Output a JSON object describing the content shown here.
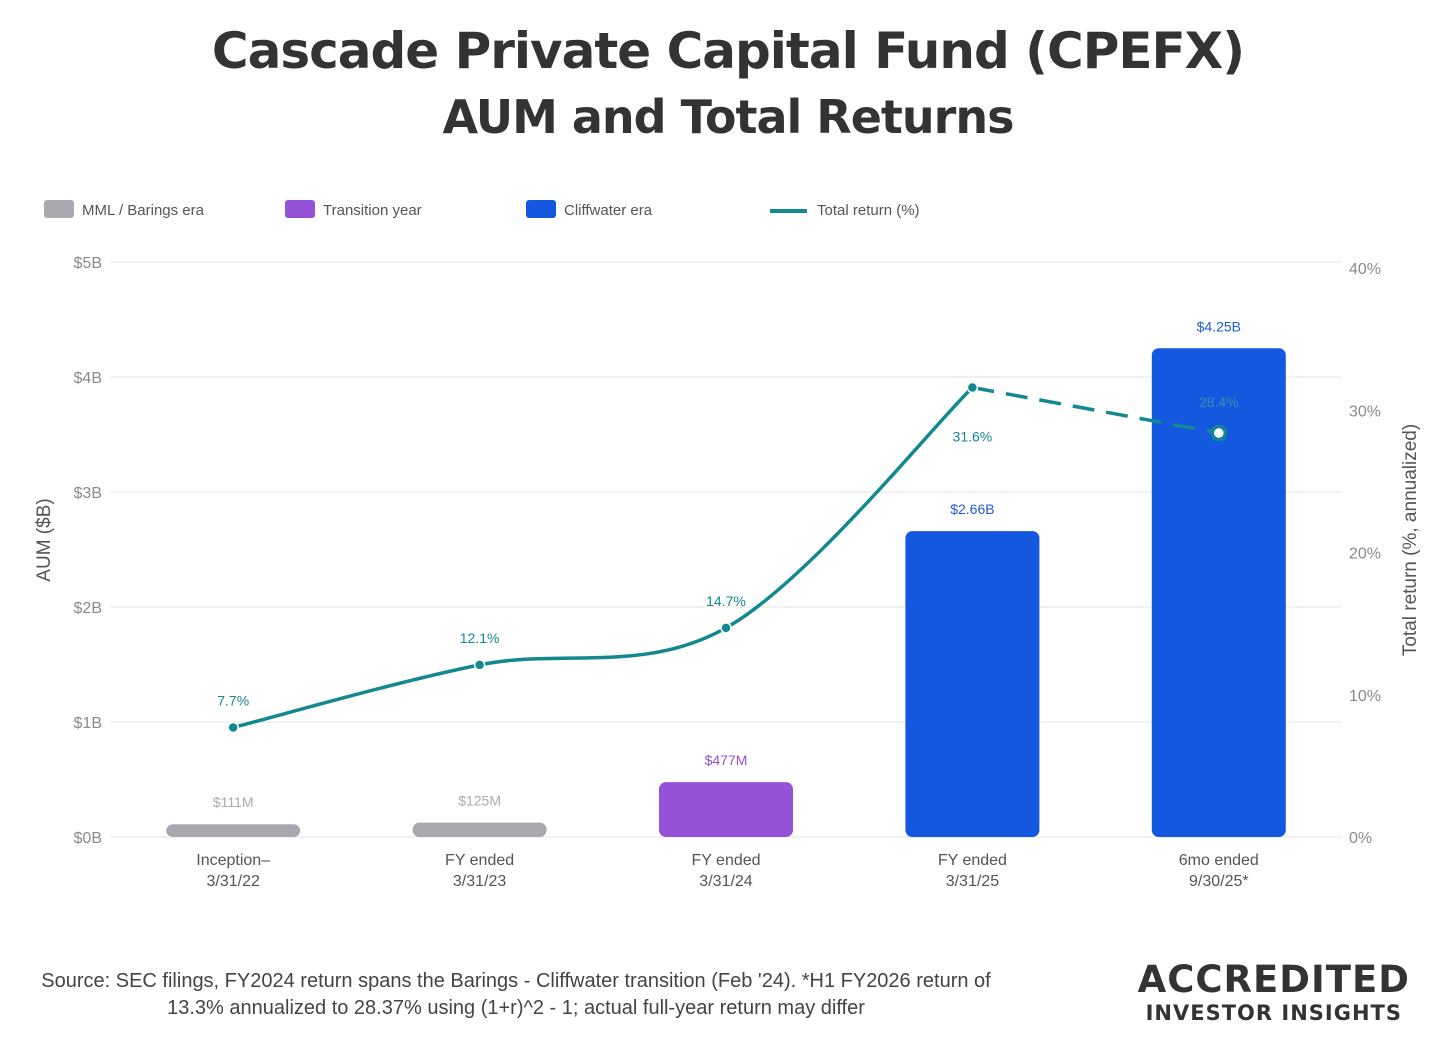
{
  "header": {
    "title": "Cascade Private Capital Fund (CPEFX)",
    "subtitle": "AUM and Total Returns"
  },
  "chart_data": {
    "type": "bar",
    "categories": [
      [
        "Inception–",
        "3/31/22"
      ],
      [
        "FY ended",
        "3/31/23"
      ],
      [
        "FY ended",
        "3/31/24"
      ],
      [
        "FY ended",
        "3/31/25"
      ],
      [
        "6mo ended",
        "9/30/25*"
      ]
    ],
    "legend": [
      {
        "label": "MML / Barings era",
        "color": "#a7a9ae",
        "kind": "box"
      },
      {
        "label": "Transition year",
        "color": "#9552d9",
        "kind": "box"
      },
      {
        "label": "Cliffwater era",
        "color": "#1558e0",
        "kind": "box"
      },
      {
        "label": "Total return (%)",
        "color": "#138890",
        "kind": "line"
      }
    ],
    "legend_position": "top-left",
    "series": [
      {
        "name": "AUM",
        "axis": "left",
        "values": [
          0.111,
          0.125,
          0.477,
          2.66,
          4.25
        ],
        "labels": [
          "$111M",
          "$125M",
          "$477M",
          "$2.66B",
          "$4.25B"
        ],
        "eras": [
          "MML / Barings era",
          "MML / Barings era",
          "Transition year",
          "Cliffwater era",
          "Cliffwater era"
        ],
        "colors": [
          "#a7a9ae",
          "#a7a9ae",
          "#9552d9",
          "#1558e0",
          "#1558e0"
        ],
        "label_colors": [
          "#a9abb0",
          "#a9abb0",
          "#9552d9",
          "#1f5ad8",
          "#1f5ad8"
        ]
      },
      {
        "name": "Total return (%)",
        "axis": "right",
        "values": [
          7.7,
          12.1,
          14.7,
          31.6,
          28.4
        ],
        "labels": [
          "7.7%",
          "12.1%",
          "14.7%",
          "31.6%",
          "28.4%"
        ],
        "color": "#138890"
      }
    ],
    "y_left": {
      "label": "AUM ($B)",
      "range": [
        0,
        5
      ],
      "ticks": [
        0,
        1,
        2,
        3,
        4,
        5
      ],
      "tick_labels": [
        "$0B",
        "$1B",
        "$2B",
        "$3B",
        "$4B",
        "$5B"
      ]
    },
    "y_right": {
      "label": "Total return (%, annualized)",
      "range": [
        0,
        40
      ],
      "ticks": [
        0,
        10,
        20,
        30,
        40
      ],
      "tick_labels": [
        "0%",
        "10%",
        "20%",
        "30%",
        "40%"
      ]
    },
    "grid": true
  },
  "footer": {
    "source_line_1": "Source:  SEC filings, FY2024 return spans the Barings - Cliffwater transition (Feb '24). *H1 FY2026 return of",
    "source_line_2": "13.3% annualized to 28.37% using (1+r)^2 - 1; actual full-year return may differ",
    "brand_line_1": "ACCREDITED",
    "brand_line_2": "INVESTOR INSIGHTS"
  }
}
